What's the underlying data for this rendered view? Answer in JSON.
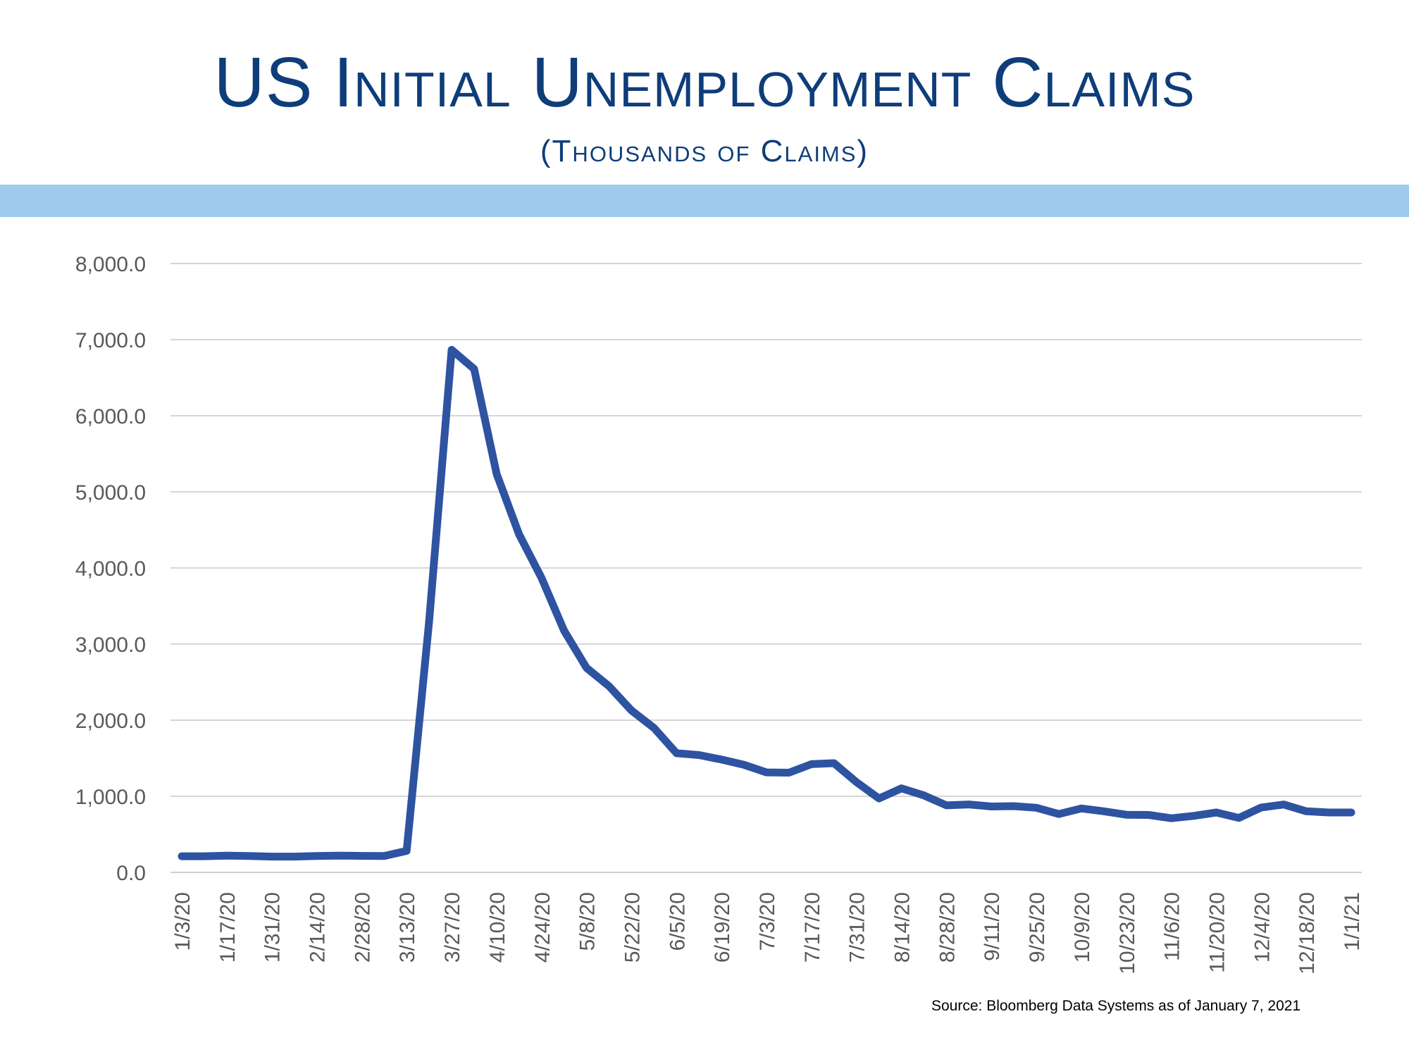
{
  "header": {
    "title": "US Initial Unemployment Claims",
    "subtitle": "(Thousands of Claims)"
  },
  "colors": {
    "title": "#0e3d7a",
    "band": "#9ecbec",
    "line": "#2e53a1",
    "grid": "#c8c8c8",
    "tick_text": "#595959"
  },
  "source": "Source:  Bloomberg Data Systems as of January 7, 2021",
  "chart_data": {
    "type": "line",
    "title": "US Initial Unemployment Claims",
    "subtitle": "(Thousands of Claims)",
    "xlabel": "",
    "ylabel": "",
    "ylim": [
      0,
      8000
    ],
    "yticks": [
      "0.0",
      "1,000.0",
      "2,000.0",
      "3,000.0",
      "4,000.0",
      "5,000.0",
      "6,000.0",
      "7,000.0",
      "8,000.0"
    ],
    "grid": true,
    "legend": "none",
    "x_tick_labels": [
      "1/3/20",
      "1/17/20",
      "1/31/20",
      "2/14/20",
      "2/28/20",
      "3/13/20",
      "3/27/20",
      "4/10/20",
      "4/24/20",
      "5/8/20",
      "5/22/20",
      "6/5/20",
      "6/19/20",
      "7/3/20",
      "7/17/20",
      "7/31/20",
      "8/14/20",
      "8/28/20",
      "9/11/20",
      "9/25/20",
      "10/9/20",
      "10/23/20",
      "11/6/20",
      "11/20/20",
      "12/4/20",
      "12/18/20",
      "1/1/21"
    ],
    "x": [
      "1/3/20",
      "1/10/20",
      "1/17/20",
      "1/24/20",
      "1/31/20",
      "2/7/20",
      "2/14/20",
      "2/21/20",
      "2/28/20",
      "3/6/20",
      "3/13/20",
      "3/20/20",
      "3/27/20",
      "4/3/20",
      "4/10/20",
      "4/17/20",
      "4/24/20",
      "5/1/20",
      "5/8/20",
      "5/15/20",
      "5/22/20",
      "5/29/20",
      "6/5/20",
      "6/12/20",
      "6/19/20",
      "6/26/20",
      "7/3/20",
      "7/10/20",
      "7/17/20",
      "7/24/20",
      "7/31/20",
      "8/7/20",
      "8/14/20",
      "8/21/20",
      "8/28/20",
      "9/4/20",
      "9/11/20",
      "9/18/20",
      "9/25/20",
      "10/2/20",
      "10/9/20",
      "10/16/20",
      "10/23/20",
      "10/30/20",
      "11/6/20",
      "11/13/20",
      "11/20/20",
      "11/27/20",
      "12/4/20",
      "12/11/20",
      "12/18/20",
      "12/25/20",
      "1/1/21"
    ],
    "series": [
      {
        "values": [
          212,
          212,
          220,
          215,
          207,
          207,
          215,
          220,
          217,
          216,
          282,
          3307,
          6867,
          6615,
          5237,
          4442,
          3867,
          3176,
          2687,
          2446,
          2126,
          1897,
          1566,
          1542,
          1482,
          1413,
          1314,
          1310,
          1422,
          1435,
          1186,
          971,
          1104,
          1011,
          881,
          893,
          866,
          870,
          849,
          767,
          840,
          803,
          757,
          755,
          711,
          743,
          787,
          716,
          853,
          892,
          803,
          787,
          787
        ]
      }
    ]
  }
}
